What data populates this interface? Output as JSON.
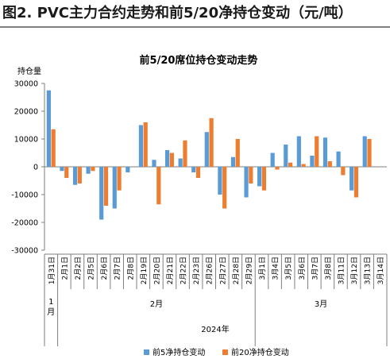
{
  "figure_title": "图2. PVC主力合约走势和前5/20净持仓变动（元/吨）",
  "colors": {
    "series1": "#5b9bd5",
    "series2": "#ed7d31",
    "axis": "#7f7f7f",
    "grid": "#bfbfbf"
  },
  "chart_data": {
    "type": "bar",
    "title": "前5/20席位持仓变动走势",
    "ylabel": "持仓量",
    "ylim": [
      -30000,
      30000
    ],
    "yticks": [
      30000,
      20000,
      10000,
      0,
      -10000,
      -20000,
      -30000
    ],
    "grid": false,
    "legend_position": "bottom",
    "categories": [
      "1月31日",
      "2月1日",
      "2月2日",
      "2月5日",
      "2月6日",
      "2月7日",
      "2月8日",
      "2月19日",
      "2月20日",
      "2月21日",
      "2月22日",
      "2月23日",
      "2月26日",
      "2月27日",
      "2月28日",
      "2月29日",
      "3月1日",
      "3月4日",
      "3月5日",
      "3月6日",
      "3月7日",
      "3月8日",
      "3月11日",
      "3月12日",
      "3月13日",
      "3月14日"
    ],
    "month_groups": [
      {
        "label": "1\n月",
        "start": 0,
        "end": 0
      },
      {
        "label": "2月",
        "start": 1,
        "end": 15
      },
      {
        "label": "3月",
        "start": 16,
        "end": 25
      }
    ],
    "year_label": "2024年",
    "series": [
      {
        "name": "前5净持仓变动",
        "values": [
          27500,
          -1500,
          -6500,
          -2500,
          -19000,
          -15000,
          -2000,
          15000,
          2500,
          6000,
          3000,
          -2000,
          12500,
          -10000,
          3500,
          -11000,
          -7000,
          5000,
          8000,
          11000,
          4000,
          10500,
          5500,
          -8500,
          11000,
          null
        ]
      },
      {
        "name": "前20净持仓变动",
        "values": [
          13500,
          -4000,
          -6000,
          -1500,
          -14000,
          -8500,
          0,
          16000,
          -13500,
          5000,
          9500,
          -4000,
          17500,
          -15000,
          10000,
          -6000,
          -8500,
          -1000,
          1500,
          1000,
          11000,
          2000,
          -3000,
          -11000,
          10000,
          null
        ]
      }
    ]
  }
}
